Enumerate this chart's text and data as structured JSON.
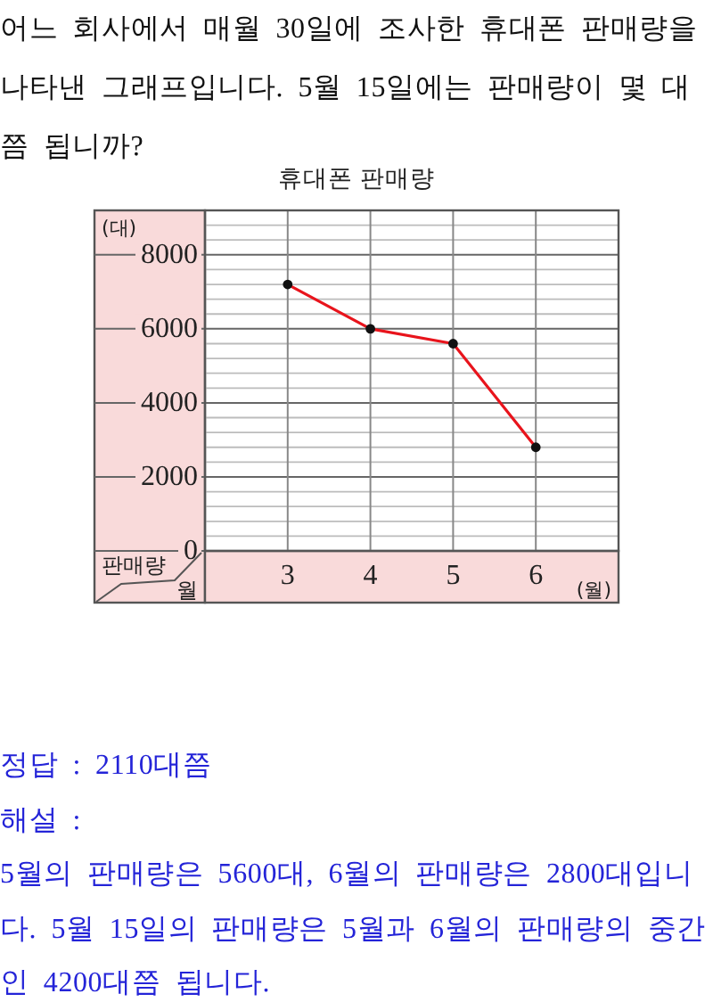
{
  "chart_data": {
    "type": "line",
    "title": "휴대폰 판매량",
    "xlabel": "(월)",
    "ylabel": "(대)",
    "x": [
      3,
      4,
      5,
      6
    ],
    "xlim": [
      2,
      7
    ],
    "xticks": [
      3,
      4,
      5,
      6
    ],
    "ylim": [
      0,
      9200
    ],
    "yticks": [
      0,
      {
        "value": 400,
        "label": null
      },
      {
        "value": 800,
        "label": null
      },
      {
        "value": 1200,
        "label": null
      },
      {
        "value": 1600,
        "label": null
      },
      2000,
      {
        "value": 2400,
        "label": null
      },
      {
        "value": 2800,
        "label": null
      },
      {
        "value": 3200,
        "label": null
      },
      {
        "value": 3600,
        "label": null
      },
      4000,
      {
        "value": 4400,
        "label": null
      },
      {
        "value": 4800,
        "label": null
      },
      {
        "value": 5200,
        "label": null
      },
      {
        "value": 5600,
        "label": null
      },
      6000,
      {
        "value": 6400,
        "label": null
      },
      {
        "value": 6800,
        "label": null
      },
      {
        "value": 7200,
        "label": null
      },
      {
        "value": 7600,
        "label": null
      },
      8000,
      {
        "value": 8400,
        "label": null
      },
      {
        "value": 8800,
        "label": null
      }
    ],
    "series": [
      {
        "color": "#e8141c",
        "values": [
          7200,
          6000,
          5600,
          2800
        ]
      }
    ],
    "marker": "circle",
    "grid": true,
    "annotations": [
      "어느 회사에서 매월 30일에 조사한 휴대폰 판매량을 나타낸 그래프입니다. 5월 15일에는 판매량이 몇 대쯤 됩니까?",
      "판매량",
      "월",
      "정답 : 2110대쯤",
      "해설 :",
      "5월의 판매량은 5600대, 6월의 판매량은 2800대입니다. 5월 15일의 판매량은 5월과 6월의 판매량의 중간인 4200대쯤 됩니다."
    ]
  }
}
